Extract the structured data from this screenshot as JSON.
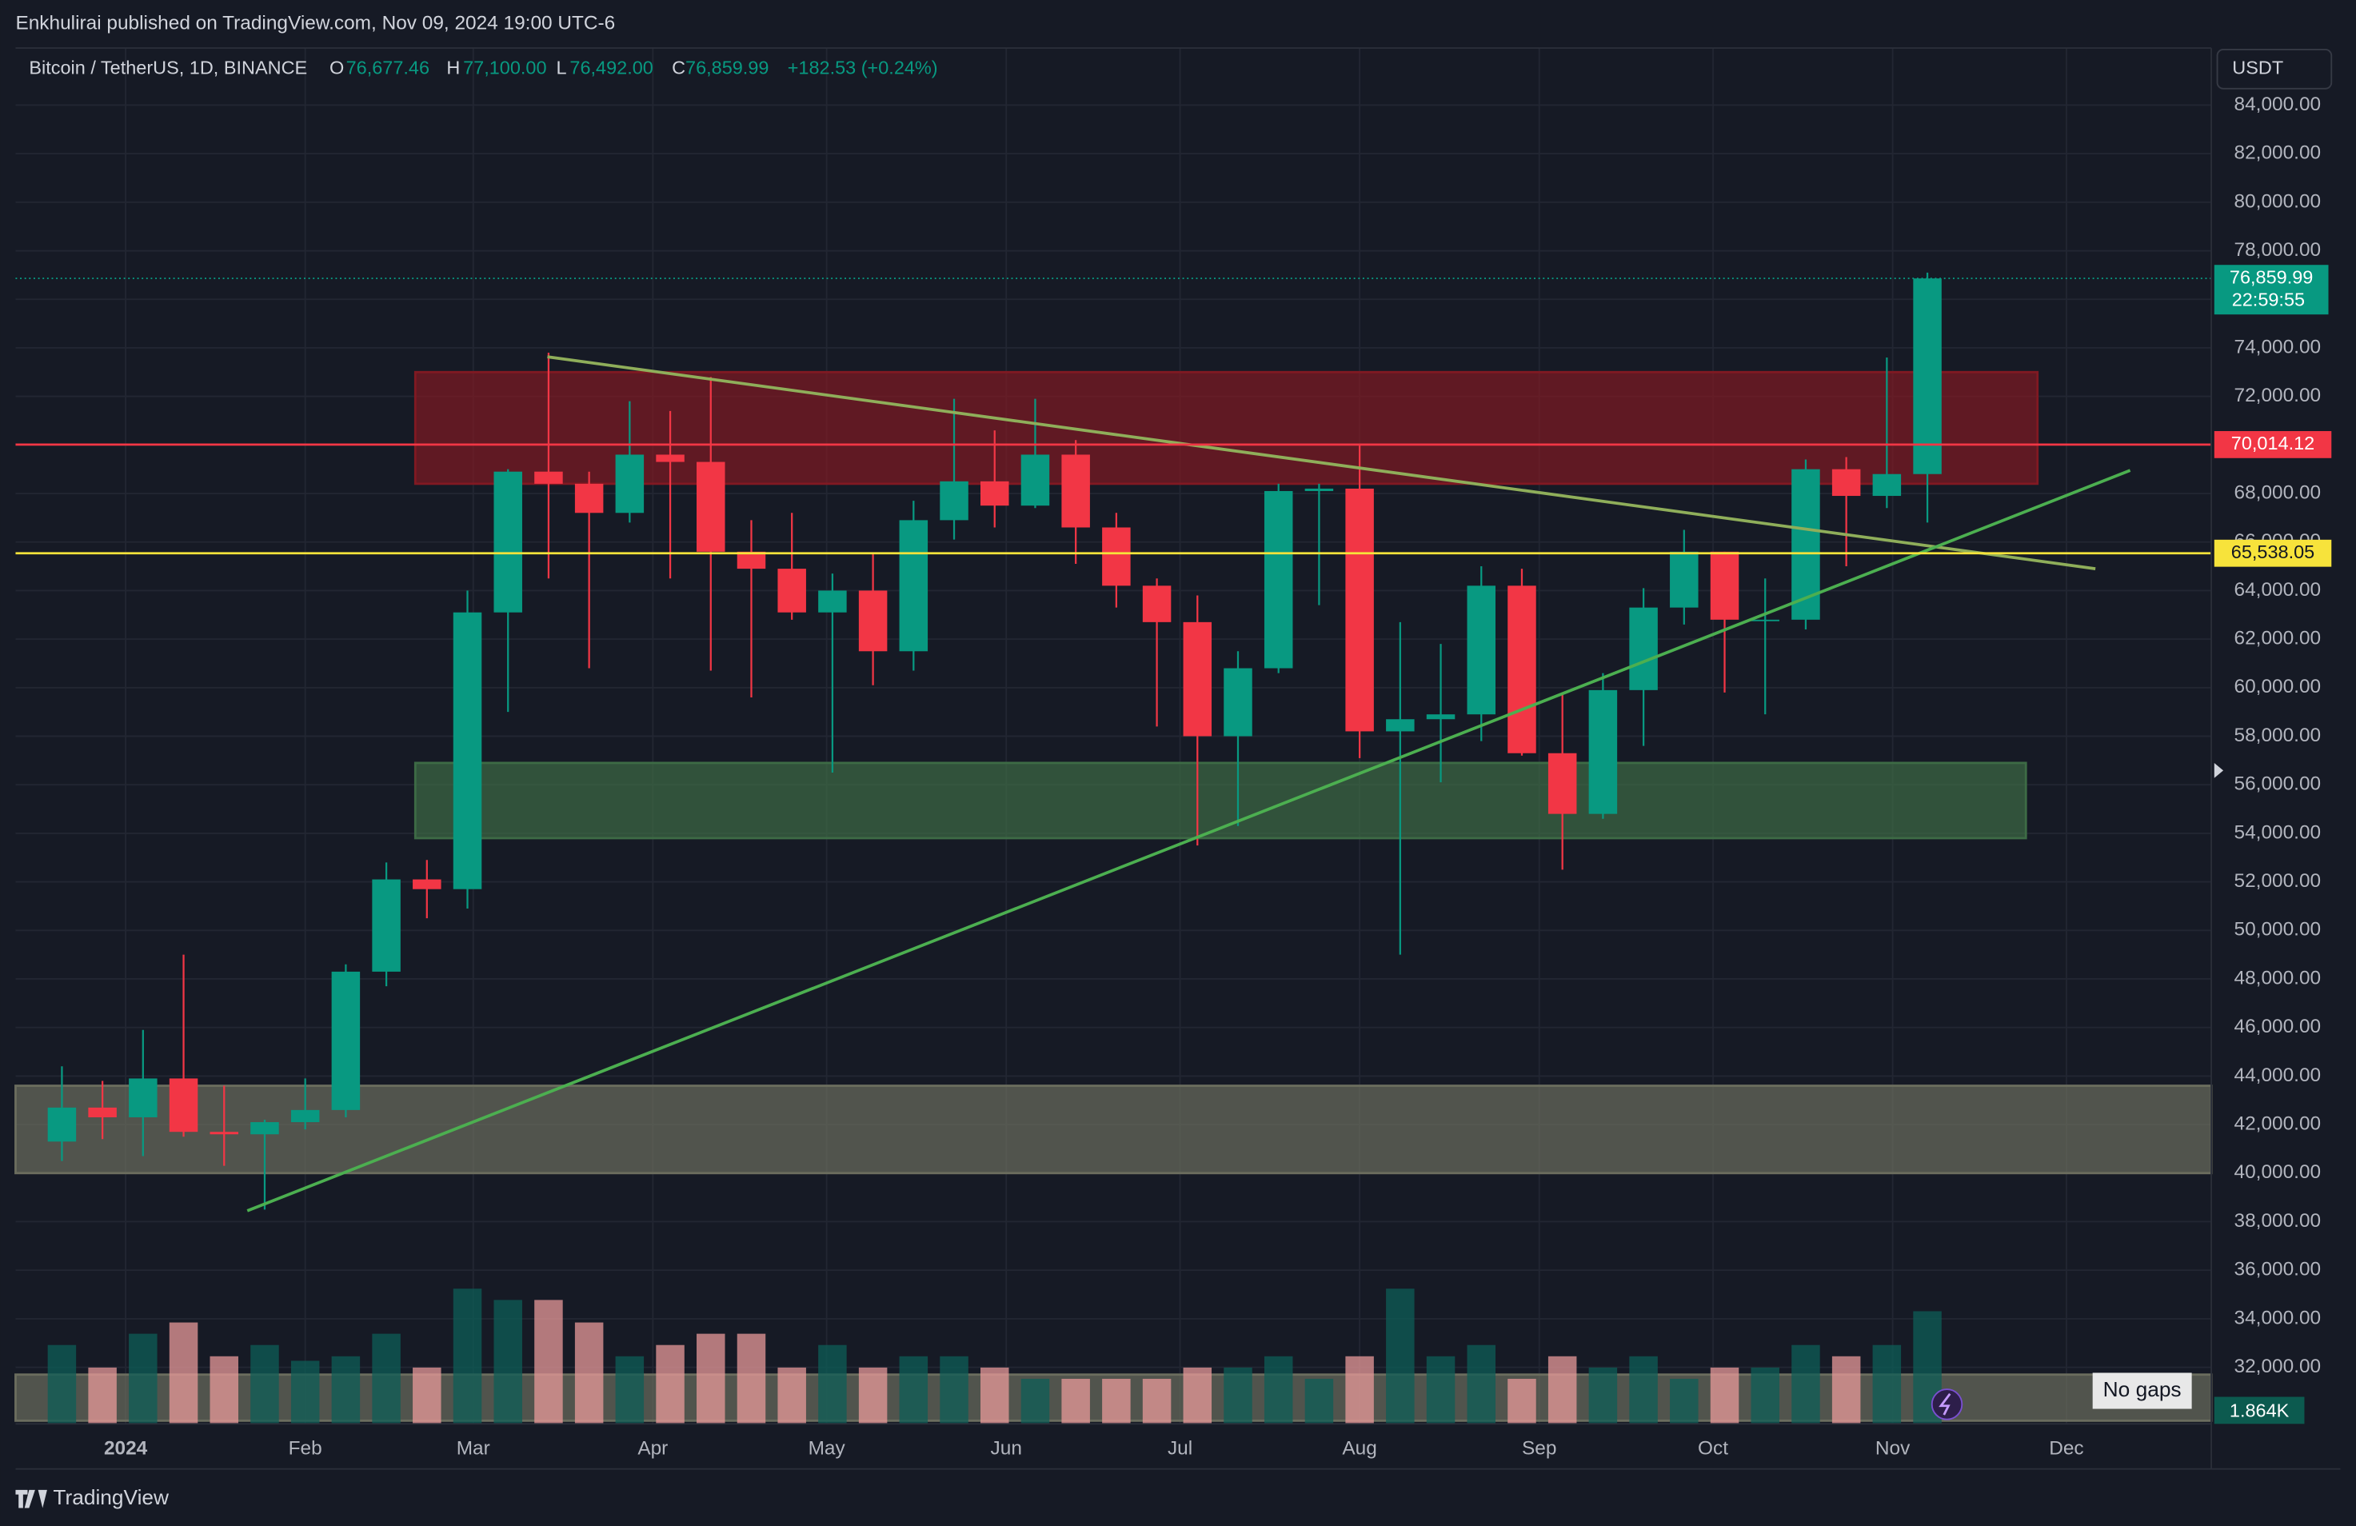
{
  "header": {
    "publisher": "Enkhulirai published on TradingView.com, Nov 09, 2024 19:00 UTC-6",
    "symbol": "Bitcoin / TetherUS, 1D, BINANCE",
    "ohlc": [
      {
        "key": "O",
        "value": "76,677.46"
      },
      {
        "key": "H",
        "value": "77,100.00"
      },
      {
        "key": "L",
        "value": "76,492.00"
      },
      {
        "key": "C",
        "value": "76,859.99"
      }
    ],
    "change": "+182.53 (+0.24%)"
  },
  "chart_data": {
    "type": "candlestick",
    "currency": "USDT",
    "x": [
      -14,
      -7,
      0,
      7,
      14,
      21,
      28,
      35,
      42,
      49,
      56,
      63,
      70,
      77,
      84,
      91,
      98,
      105,
      112,
      119,
      126,
      133,
      140,
      147,
      154,
      161,
      168,
      175,
      182,
      189,
      196,
      203,
      210,
      217,
      224,
      231,
      238,
      245,
      252,
      259,
      266,
      273,
      280,
      287,
      294,
      301,
      308
    ],
    "open": [
      41300,
      42700,
      42300,
      43900,
      41700,
      41600,
      42100,
      42600,
      48300,
      52100,
      51700,
      63100,
      68900,
      68400,
      67200,
      69600,
      69300,
      65600,
      64900,
      63100,
      64000,
      61500,
      66900,
      68500,
      67500,
      69600,
      66600,
      64200,
      62700,
      58000,
      60800,
      68100,
      68200,
      58200,
      58700,
      58900,
      64200,
      57300,
      54800,
      59900,
      63300,
      65600,
      62800,
      62800,
      69000,
      67900,
      68800
    ],
    "high": [
      44400,
      43800,
      45900,
      49000,
      43600,
      42200,
      43900,
      48600,
      52800,
      52900,
      64000,
      69000,
      73800,
      68900,
      71800,
      71400,
      72800,
      66900,
      67200,
      64700,
      65500,
      67700,
      71900,
      70600,
      71900,
      70200,
      67200,
      64500,
      63800,
      61500,
      68400,
      68400,
      70000,
      62700,
      61800,
      65000,
      64900,
      59800,
      60600,
      64100,
      66500,
      65600,
      64500,
      69400,
      69500,
      73600,
      77100
    ],
    "low": [
      40500,
      41400,
      40700,
      41500,
      40300,
      38500,
      41800,
      42300,
      47700,
      50500,
      50900,
      59000,
      64500,
      60800,
      66800,
      64500,
      60700,
      59600,
      62800,
      56500,
      60100,
      60700,
      66100,
      66600,
      67400,
      65100,
      63300,
      58400,
      53500,
      54300,
      60600,
      63400,
      57100,
      49000,
      56100,
      57800,
      57200,
      52500,
      54600,
      57600,
      62600,
      59800,
      58900,
      62400,
      65000,
      67400,
      66800
    ],
    "close": [
      42700,
      42300,
      43900,
      41700,
      41600,
      42100,
      42600,
      48300,
      52100,
      51700,
      63100,
      68900,
      68400,
      67200,
      69600,
      69300,
      65600,
      64900,
      63100,
      64000,
      61500,
      66900,
      68500,
      67500,
      69600,
      66600,
      64200,
      62700,
      58000,
      60800,
      68100,
      68200,
      58200,
      58700,
      58900,
      64200,
      57300,
      54800,
      59900,
      63300,
      65600,
      62800,
      62800,
      69000,
      67900,
      68800,
      76860
    ],
    "volume": [
      35,
      25,
      40,
      45,
      30,
      35,
      28,
      30,
      40,
      25,
      60,
      55,
      55,
      45,
      30,
      35,
      40,
      40,
      25,
      35,
      25,
      30,
      30,
      25,
      20,
      20,
      20,
      20,
      25,
      25,
      30,
      20,
      30,
      60,
      30,
      35,
      20,
      30,
      25,
      30,
      20,
      25,
      25,
      35,
      30,
      35,
      50
    ],
    "volume_lim": [
      0,
      200
    ],
    "up_color": "#089981",
    "down_color": "#f23645",
    "xlim": [
      -19,
      360
    ],
    "ylim": [
      29670,
      86350
    ],
    "xticks": [
      {
        "value": 0,
        "label": "2024"
      },
      {
        "value": 31,
        "label": "Feb"
      },
      {
        "value": 60,
        "label": "Mar"
      },
      {
        "value": 91,
        "label": "Apr"
      },
      {
        "value": 121,
        "label": "May"
      },
      {
        "value": 152,
        "label": "Jun"
      },
      {
        "value": 182,
        "label": "Jul"
      },
      {
        "value": 213,
        "label": "Aug"
      },
      {
        "value": 244,
        "label": "Sep"
      },
      {
        "value": 274,
        "label": "Oct"
      },
      {
        "value": 305,
        "label": "Nov"
      },
      {
        "value": 335,
        "label": "Dec"
      }
    ],
    "yticks": [
      {
        "value": 32000,
        "label": "32,000.00"
      },
      {
        "value": 34000,
        "label": "34,000.00"
      },
      {
        "value": 36000,
        "label": "36,000.00"
      },
      {
        "value": 38000,
        "label": "38,000.00"
      },
      {
        "value": 40000,
        "label": "40,000.00"
      },
      {
        "value": 42000,
        "label": "42,000.00"
      },
      {
        "value": 44000,
        "label": "44,000.00"
      },
      {
        "value": 46000,
        "label": "46,000.00"
      },
      {
        "value": 48000,
        "label": "48,000.00"
      },
      {
        "value": 50000,
        "label": "50,000.00"
      },
      {
        "value": 52000,
        "label": "52,000.00"
      },
      {
        "value": 54000,
        "label": "54,000.00"
      },
      {
        "value": 56000,
        "label": "56,000.00"
      },
      {
        "value": 58000,
        "label": "58,000.00"
      },
      {
        "value": 60000,
        "label": "60,000.00"
      },
      {
        "value": 62000,
        "label": "62,000.00"
      },
      {
        "value": 64000,
        "label": "64,000.00"
      },
      {
        "value": 66000,
        "label": "66,000.00"
      },
      {
        "value": 68000,
        "label": "68,000.00"
      },
      {
        "value": 70000,
        "label": "70,000.00"
      },
      {
        "value": 72000,
        "label": "72,000.00"
      },
      {
        "value": 74000,
        "label": "74,000.00"
      },
      {
        "value": 76000,
        "label": "76,000.00"
      },
      {
        "value": 78000,
        "label": "78,000.00"
      },
      {
        "value": 80000,
        "label": "80,000.00"
      },
      {
        "value": 82000,
        "label": "82,000.00"
      },
      {
        "value": 84000,
        "label": "84,000.00"
      }
    ],
    "grid": true,
    "zones": [
      {
        "x": [
          50,
          330
        ],
        "y": [
          68400,
          73000
        ],
        "color": "#801922"
      },
      {
        "x": [
          50,
          328
        ],
        "y": [
          53800,
          56900
        ],
        "color": "#3d6b45"
      },
      {
        "x": [
          -19,
          360
        ],
        "y": [
          40000,
          43600
        ],
        "color": "#6b6d5e"
      },
      {
        "x": [
          -19,
          360
        ],
        "y": [
          29800,
          31700
        ],
        "color": "#6b6d5e"
      }
    ],
    "trendlines": [
      {
        "x": [
          72.8,
          340
        ],
        "y": [
          73630,
          64900
        ],
        "color": "#8fae5a"
      },
      {
        "x": [
          21,
          346
        ],
        "y": [
          38450,
          68950
        ],
        "color": "#4caf50"
      }
    ],
    "hlines": [
      {
        "value": 70014.12,
        "label": "70,014.12",
        "color": "#f23645"
      },
      {
        "value": 65538.05,
        "label": "65,538.05",
        "color": "#f7e33b"
      }
    ],
    "last_price": {
      "value": 76859.99,
      "label": "76,859.99",
      "countdown": "22:59:55",
      "color": "#089981"
    },
    "volume_label": "1.864K",
    "gaps_label": "No gaps"
  },
  "footer": {
    "brand": "TradingView"
  }
}
